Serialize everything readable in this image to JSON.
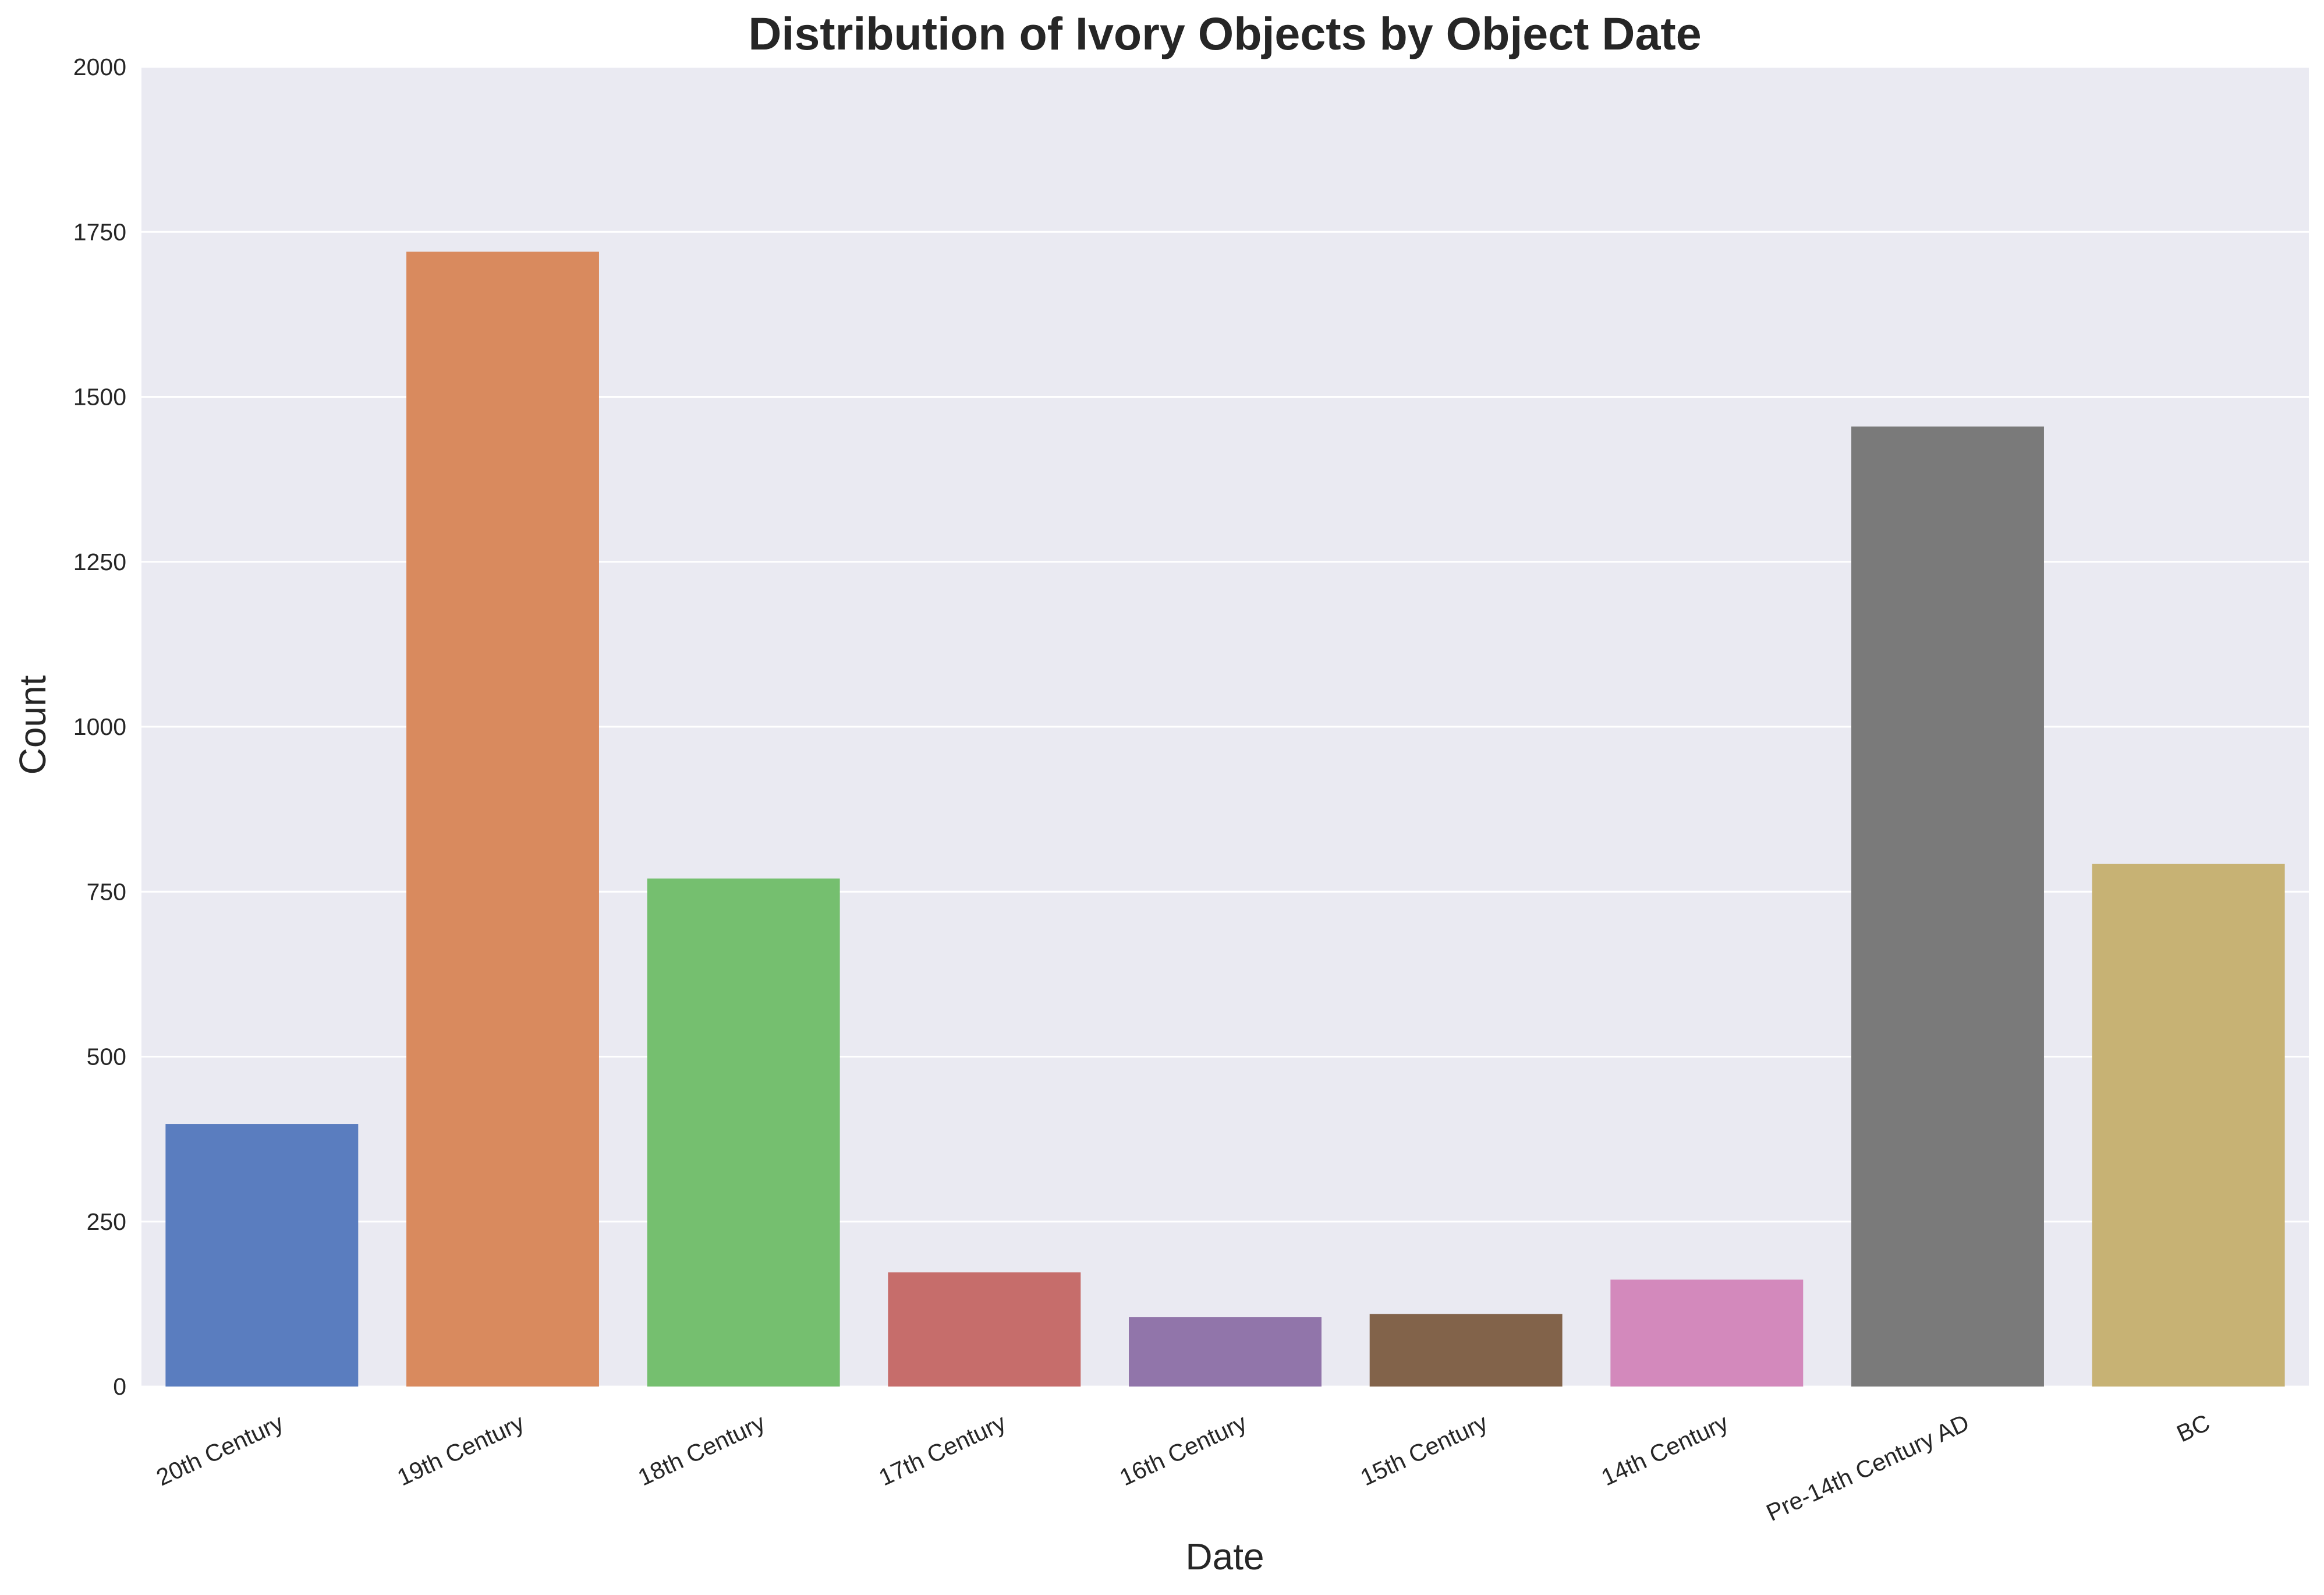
{
  "chart_data": {
    "type": "bar",
    "title": "Distribution of Ivory Objects by Object Date",
    "xlabel": "Date",
    "ylabel": "Count",
    "categories": [
      "20th Century",
      "19th Century",
      "18th Century",
      "17th Century",
      "16th Century",
      "15th Century",
      "14th Century",
      "Pre-14th Century AD",
      "BC"
    ],
    "values": [
      398,
      1720,
      770,
      173,
      105,
      110,
      162,
      1455,
      792
    ],
    "colors": [
      "#5a7dbf",
      "#d98a5e",
      "#75bf6f",
      "#c66d6b",
      "#9175aa",
      "#82634a",
      "#d389bc",
      "#7a7a7a",
      "#c7b274"
    ],
    "ylim": [
      0,
      2000
    ],
    "yticks": [
      0,
      250,
      500,
      750,
      1000,
      1250,
      1500,
      1750,
      2000
    ],
    "grid": true,
    "background": "#eaeaf2",
    "grid_color": "#ffffff"
  }
}
